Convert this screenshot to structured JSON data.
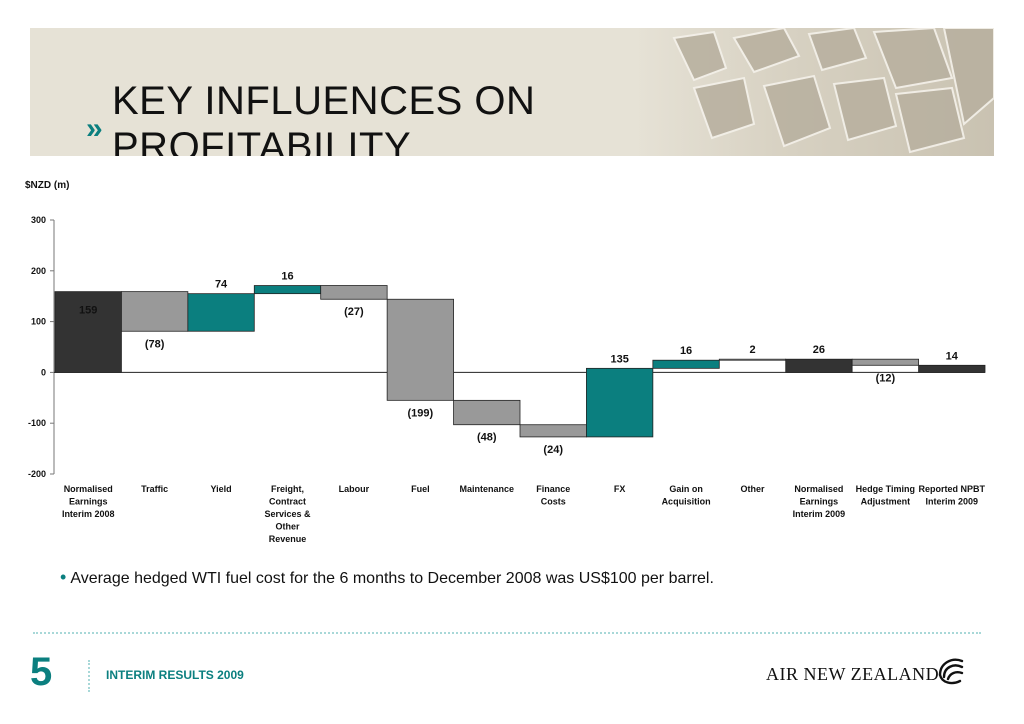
{
  "header": {
    "title_line1": "KEY INFLUENCES ON",
    "title_line2": "PROFITABILITY",
    "chevron": "»"
  },
  "chart_data": {
    "type": "waterfall",
    "unit_label": "$NZD (m)",
    "ylim": [
      -200,
      300
    ],
    "yticks": [
      300,
      200,
      100,
      0,
      -100,
      -200
    ],
    "grid": false,
    "colors": {
      "dark": "#333333",
      "grey": "#999999",
      "teal": "#0b7f7f",
      "white": "#ffffff"
    },
    "bars": [
      {
        "category": [
          "Normalised",
          "Earnings",
          "Interim 2008"
        ],
        "start": 0,
        "end": 159,
        "label": "159",
        "color": "dark"
      },
      {
        "category": [
          "Traffic"
        ],
        "start": 159,
        "end": 81,
        "label": "(78)",
        "color": "grey"
      },
      {
        "category": [
          "Yield"
        ],
        "start": 81,
        "end": 155,
        "label": "74",
        "color": "teal"
      },
      {
        "category": [
          "Freight,",
          "Contract",
          "Services &",
          "Other",
          "Revenue"
        ],
        "start": 155,
        "end": 171,
        "label": "16",
        "color": "teal"
      },
      {
        "category": [
          "Labour"
        ],
        "start": 171,
        "end": 144,
        "label": "(27)",
        "color": "grey"
      },
      {
        "category": [
          "Fuel"
        ],
        "start": 144,
        "end": -55,
        "label": "(199)",
        "color": "grey"
      },
      {
        "category": [
          "Maintenance"
        ],
        "start": -55,
        "end": -103,
        "label": "(48)",
        "color": "grey"
      },
      {
        "category": [
          "Finance",
          "Costs"
        ],
        "start": -103,
        "end": -127,
        "label": "(24)",
        "color": "grey"
      },
      {
        "category": [
          "FX"
        ],
        "start": -127,
        "end": 8,
        "label": "135",
        "color": "teal"
      },
      {
        "category": [
          "Gain on",
          "Acquisition"
        ],
        "start": 8,
        "end": 24,
        "label": "16",
        "color": "teal"
      },
      {
        "category": [
          "Other"
        ],
        "start": 24,
        "end": 26,
        "label": "2",
        "color": "white"
      },
      {
        "category": [
          "Normalised",
          "Earnings",
          "Interim 2009"
        ],
        "start": 0,
        "end": 26,
        "label": "26",
        "color": "dark"
      },
      {
        "category": [
          "Hedge Timing",
          "Adjustment"
        ],
        "start": 26,
        "end": 14,
        "label": "(12)",
        "color": "grey"
      },
      {
        "category": [
          "Reported NPBT",
          "Interim 2009"
        ],
        "start": 0,
        "end": 14,
        "label": "14",
        "color": "dark"
      }
    ]
  },
  "bullet": "Average hedged WTI fuel cost for the 6 months to December 2008 was US$100 per barrel.",
  "footer": {
    "page_number": "5",
    "text": "INTERIM RESULTS 2009",
    "brand": "AIR NEW ZEALAND"
  }
}
